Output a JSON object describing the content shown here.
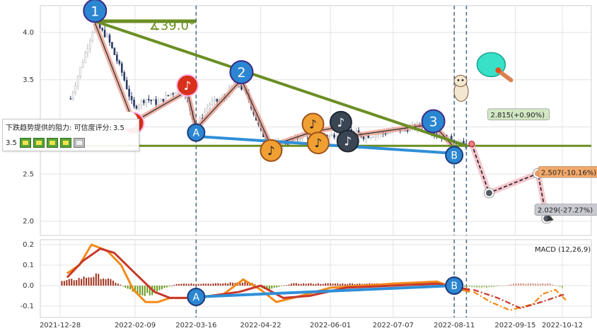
{
  "chart_data": [
    {
      "type": "candlestick",
      "x_ticks": [
        "2021-12-28",
        "2022-02-09",
        "2022-03-16",
        "2022-04-22",
        "2022-06-01",
        "2022-07-07",
        "2022-08-11",
        "2022-09-15",
        "2022-10-12"
      ],
      "y_ticks": [
        "4.0",
        "3.5",
        "3.0",
        "2.5",
        "2.0"
      ],
      "ylim": [
        1.95,
        4.3
      ],
      "grid": true,
      "price_path": [
        {
          "date": "2022-01-03",
          "price": 3.3
        },
        {
          "date": "2022-01-10",
          "price": 3.7
        },
        {
          "date": "2022-01-17",
          "price": 4.1
        },
        {
          "date": "2022-01-24",
          "price": 3.95
        },
        {
          "date": "2022-02-01",
          "price": 3.6
        },
        {
          "date": "2022-02-08",
          "price": 3.2
        },
        {
          "date": "2022-02-15",
          "price": 3.3
        },
        {
          "date": "2022-02-22",
          "price": 3.25
        },
        {
          "date": "2022-03-01",
          "price": 3.35
        },
        {
          "date": "2022-03-08",
          "price": 3.42
        },
        {
          "date": "2022-03-16",
          "price": 3.0
        },
        {
          "date": "2022-03-24",
          "price": 3.25
        },
        {
          "date": "2022-04-01",
          "price": 3.3
        },
        {
          "date": "2022-04-08",
          "price": 3.5
        },
        {
          "date": "2022-04-15",
          "price": 3.3
        },
        {
          "date": "2022-04-22",
          "price": 2.95
        },
        {
          "date": "2022-04-28",
          "price": 2.8
        },
        {
          "date": "2022-05-10",
          "price": 2.85
        },
        {
          "date": "2022-05-20",
          "price": 2.95
        },
        {
          "date": "2022-06-01",
          "price": 2.9
        },
        {
          "date": "2022-06-10",
          "price": 2.98
        },
        {
          "date": "2022-06-20",
          "price": 2.9
        },
        {
          "date": "2022-07-07",
          "price": 2.95
        },
        {
          "date": "2022-07-25",
          "price": 3.02
        },
        {
          "date": "2022-08-01",
          "price": 2.92
        },
        {
          "date": "2022-08-11",
          "price": 2.85
        },
        {
          "date": "2022-08-18",
          "price": 2.8
        }
      ],
      "trendlines": [
        {
          "name": "resistance",
          "color": "#6b8e23",
          "from": {
            "date": "2022-01-17",
            "price": 4.12
          },
          "to": {
            "date": "2022-08-18",
            "price": 2.8
          }
        },
        {
          "name": "support",
          "color": "#2f8fd8",
          "from": {
            "date": "2022-03-16",
            "price": 2.9
          },
          "to": {
            "date": "2022-08-11",
            "price": 2.72
          }
        }
      ],
      "horizontal_line": {
        "price": 2.8,
        "color": "#6b8e23"
      },
      "wave_markers": [
        {
          "label": "1",
          "date": "2022-01-17",
          "price": 4.23
        },
        {
          "label": "2",
          "date": "2022-04-11",
          "price": 3.58
        },
        {
          "label": "3",
          "date": "2022-07-30",
          "price": 3.06
        },
        {
          "label": "A",
          "date": "2022-03-16",
          "price": 2.94
        },
        {
          "label": "B",
          "date": "2022-08-11",
          "price": 2.7
        }
      ],
      "note_markers": [
        {
          "date": "2022-02-08",
          "price": 3.04,
          "style": "red-half"
        },
        {
          "date": "2022-03-11",
          "price": 3.44,
          "style": "red"
        },
        {
          "date": "2022-04-28",
          "price": 2.75,
          "style": "orange"
        },
        {
          "date": "2022-05-22",
          "price": 3.03,
          "style": "orange"
        },
        {
          "date": "2022-05-25",
          "price": 2.83,
          "style": "orange"
        },
        {
          "date": "2022-06-07",
          "price": 3.05,
          "style": "dark"
        },
        {
          "date": "2022-06-11",
          "price": 2.85,
          "style": "dark"
        }
      ],
      "projection": {
        "points": [
          {
            "date": "2022-08-21",
            "price": 2.82
          },
          {
            "date": "2022-08-31",
            "price": 2.3
          },
          {
            "date": "2022-09-28",
            "price": 2.507
          },
          {
            "date": "2022-10-03",
            "price": 2.029
          }
        ]
      },
      "annotations": [
        {
          "text": "∡39.0°",
          "date": "2022-02-17",
          "price": 4.03,
          "color": "#6b8e23"
        },
        {
          "text": "2.815(+0.90%)",
          "date": "2022-08-31",
          "price": 3.11,
          "bg": "#d2e7c2"
        },
        {
          "text": "2.507(-10.16%)",
          "date": "2022-09-29",
          "price": 2.5,
          "bg": "#f2a96a"
        },
        {
          "text": "2.029(-27.27%)",
          "date": "2022-09-27",
          "price": 2.1,
          "bg": "#c9c9d2"
        }
      ],
      "vlines": [
        "2022-03-16",
        "2022-08-11",
        "2022-08-18"
      ],
      "tooltip": {
        "title": "下跌趋势提供的阻力: 可信度评分:",
        "value": "3.5",
        "first_label": "3.5",
        "stars_filled": 4,
        "stars_total": 5
      }
    },
    {
      "type": "line",
      "title": "MACD (12,26,9)",
      "y_ticks": [
        "0.2",
        "0.1",
        "0.0",
        "-0.1"
      ],
      "ylim": [
        -0.16,
        0.22
      ],
      "grid": true,
      "series": [
        {
          "color": "#f28a1a",
          "points": [
            {
              "date": "2022-01-01",
              "value": 0.06
            },
            {
              "date": "2022-01-08",
              "value": 0.1
            },
            {
              "date": "2022-01-15",
              "value": 0.2
            },
            {
              "date": "2022-01-24",
              "value": 0.17
            },
            {
              "date": "2022-02-01",
              "value": 0.1
            },
            {
              "date": "2022-02-08",
              "value": -0.02
            },
            {
              "date": "2022-02-15",
              "value": -0.08
            },
            {
              "date": "2022-02-22",
              "value": -0.08
            },
            {
              "date": "2022-03-01",
              "value": -0.06
            },
            {
              "date": "2022-03-16",
              "value": -0.06
            },
            {
              "date": "2022-04-01",
              "value": -0.04
            },
            {
              "date": "2022-04-12",
              "value": 0.03
            },
            {
              "date": "2022-04-22",
              "value": -0.02
            },
            {
              "date": "2022-05-01",
              "value": -0.08
            },
            {
              "date": "2022-05-15",
              "value": -0.05
            },
            {
              "date": "2022-06-01",
              "value": -0.01
            },
            {
              "date": "2022-06-20",
              "value": 0.0
            },
            {
              "date": "2022-07-07",
              "value": 0.01
            },
            {
              "date": "2022-08-01",
              "value": 0.02
            },
            {
              "date": "2022-08-11",
              "value": -0.01
            },
            {
              "date": "2022-08-20",
              "value": -0.03
            }
          ]
        },
        {
          "color": "#c8382a",
          "points": [
            {
              "date": "2022-01-01",
              "value": 0.04
            },
            {
              "date": "2022-01-10",
              "value": 0.12
            },
            {
              "date": "2022-01-20",
              "value": 0.18
            },
            {
              "date": "2022-01-28",
              "value": 0.16
            },
            {
              "date": "2022-02-09",
              "value": 0.06
            },
            {
              "date": "2022-02-20",
              "value": -0.03
            },
            {
              "date": "2022-03-01",
              "value": -0.06
            },
            {
              "date": "2022-03-16",
              "value": -0.06
            },
            {
              "date": "2022-04-10",
              "value": -0.03
            },
            {
              "date": "2022-04-22",
              "value": 0.0
            },
            {
              "date": "2022-05-05",
              "value": -0.06
            },
            {
              "date": "2022-05-20",
              "value": -0.05
            },
            {
              "date": "2022-06-10",
              "value": -0.01
            },
            {
              "date": "2022-07-07",
              "value": 0.0
            },
            {
              "date": "2022-08-01",
              "value": 0.01
            },
            {
              "date": "2022-08-20",
              "value": -0.02
            }
          ]
        }
      ],
      "projection_series": [
        {
          "color": "#f28a1a",
          "points": [
            {
              "date": "2022-08-22",
              "value": -0.03
            },
            {
              "date": "2022-09-01",
              "value": -0.08
            },
            {
              "date": "2022-09-12",
              "value": -0.12
            },
            {
              "date": "2022-09-25",
              "value": -0.09
            },
            {
              "date": "2022-10-01",
              "value": -0.04
            },
            {
              "date": "2022-10-08",
              "value": -0.02
            },
            {
              "date": "2022-10-14",
              "value": -0.07
            }
          ]
        },
        {
          "color": "#c8382a",
          "points": [
            {
              "date": "2022-08-22",
              "value": -0.02
            },
            {
              "date": "2022-09-05",
              "value": -0.06
            },
            {
              "date": "2022-09-18",
              "value": -0.11
            },
            {
              "date": "2022-09-30",
              "value": -0.08
            },
            {
              "date": "2022-10-14",
              "value": -0.04
            }
          ]
        }
      ],
      "histogram_anchors": [
        {
          "date": "2021-12-29",
          "value": 0.02
        },
        {
          "date": "2022-01-18",
          "value": 0.05
        },
        {
          "date": "2022-01-28",
          "value": 0.02
        },
        {
          "date": "2022-02-06",
          "value": -0.02
        },
        {
          "date": "2022-02-15",
          "value": -0.05
        },
        {
          "date": "2022-03-05",
          "value": 0.01
        },
        {
          "date": "2022-03-30",
          "value": 0.01
        },
        {
          "date": "2022-04-15",
          "value": 0.02
        },
        {
          "date": "2022-04-25",
          "value": -0.02
        },
        {
          "date": "2022-05-10",
          "value": 0.01
        },
        {
          "date": "2022-06-10",
          "value": 0.01
        },
        {
          "date": "2022-07-20",
          "value": 0.01
        },
        {
          "date": "2022-08-05",
          "value": 0.01
        },
        {
          "date": "2022-08-14",
          "value": -0.005
        },
        {
          "date": "2022-08-31",
          "value": -0.01
        },
        {
          "date": "2022-09-15",
          "value": 0.01
        },
        {
          "date": "2022-10-05",
          "value": 0.01
        },
        {
          "date": "2022-10-12",
          "value": -0.01
        }
      ],
      "trendline": {
        "color": "#2f8fd8",
        "from": {
          "date": "2022-03-16",
          "value": -0.055
        },
        "to": {
          "date": "2022-08-11",
          "value": 0.0
        }
      },
      "wave_markers": [
        {
          "label": "A",
          "date": "2022-03-16",
          "value": -0.055
        },
        {
          "label": "B",
          "date": "2022-08-11",
          "value": 0.0
        }
      ],
      "vlines": [
        "2022-03-16",
        "2022-08-11",
        "2022-08-18"
      ]
    }
  ]
}
